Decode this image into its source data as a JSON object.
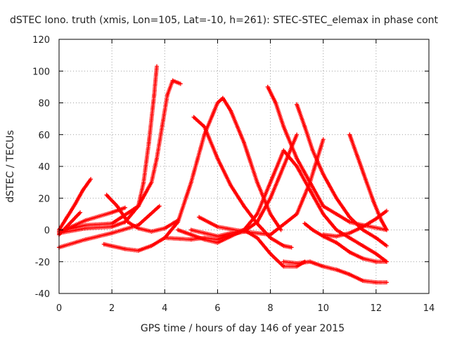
{
  "chart_data": {
    "type": "scatter",
    "title": "dSTEC Iono. truth (xmis, Lon=105, Lat=-10, h=261): STEC-STEC_elemax in phase cont",
    "xlabel": "GPS time / hours of day 146 of year 2015",
    "ylabel": "dSTEC  / TECUs",
    "xlim": [
      0,
      14
    ],
    "ylim": [
      -40,
      120
    ],
    "xticks": [
      0,
      2,
      4,
      6,
      8,
      10,
      12,
      14
    ],
    "yticks": [
      -40,
      -20,
      0,
      20,
      40,
      60,
      80,
      100,
      120
    ],
    "grid": true,
    "marker": "plus",
    "color": "#ff0000",
    "series": [
      {
        "x": [
          0.0,
          0.3,
          0.6,
          0.9,
          1.2
        ],
        "y": [
          0,
          8,
          16,
          25,
          32
        ]
      },
      {
        "x": [
          0.0,
          0.4,
          0.8
        ],
        "y": [
          -3,
          4,
          11
        ]
      },
      {
        "x": [
          0.0,
          1.0,
          2.0,
          2.5,
          3.0,
          3.2,
          3.4,
          3.6,
          3.7
        ],
        "y": [
          -2,
          1,
          2,
          5,
          15,
          30,
          55,
          85,
          103
        ]
      },
      {
        "x": [
          0.0,
          1.0,
          2.0,
          3.0,
          3.5,
          3.7,
          3.9,
          4.1,
          4.3,
          4.6
        ],
        "y": [
          -1,
          3,
          4,
          15,
          30,
          45,
          65,
          85,
          94,
          92
        ]
      },
      {
        "x": [
          0.0,
          1.0,
          2.0,
          3.0,
          3.8
        ],
        "y": [
          -11,
          -6,
          -2,
          3,
          15
        ]
      },
      {
        "x": [
          1.8,
          2.2,
          2.6,
          3.0,
          3.5,
          4.0,
          4.5
        ],
        "y": [
          22,
          15,
          5,
          1,
          -1,
          1,
          6
        ]
      },
      {
        "x": [
          0.2,
          1.0,
          2.0,
          2.5
        ],
        "y": [
          0,
          6,
          11,
          14
        ]
      },
      {
        "x": [
          1.7,
          2.5,
          3.0,
          3.5,
          4.0,
          4.5,
          5.0,
          5.5,
          6.0,
          6.2,
          6.5,
          7.0,
          7.5,
          8.0,
          8.4
        ],
        "y": [
          -9,
          -12,
          -13,
          -10,
          -5,
          5,
          30,
          60,
          80,
          83,
          75,
          55,
          30,
          10,
          0
        ]
      },
      {
        "x": [
          5.1,
          5.5,
          6.0,
          6.5,
          7.0,
          7.5,
          8.0,
          8.5,
          8.8
        ],
        "y": [
          71,
          65,
          45,
          28,
          15,
          4,
          -5,
          -10,
          -11
        ]
      },
      {
        "x": [
          4.0,
          5.0,
          5.5,
          6.0,
          6.5,
          7.0,
          7.5,
          8.0,
          8.5,
          9.0
        ],
        "y": [
          -5,
          -6,
          -5,
          -6,
          -3,
          -1,
          5,
          20,
          40,
          60
        ]
      },
      {
        "x": [
          5.3,
          6.0,
          7.0,
          8.0,
          9.0,
          9.5,
          10.0
        ],
        "y": [
          8,
          2,
          -1,
          -3,
          10,
          30,
          57
        ]
      },
      {
        "x": [
          4.5,
          5.0,
          5.5,
          6.0,
          6.5,
          7.0,
          7.5,
          8.0,
          8.5,
          9.0,
          9.3
        ],
        "y": [
          0,
          -3,
          -6,
          -8,
          -4,
          0,
          -5,
          -15,
          -23,
          -23,
          -20
        ]
      },
      {
        "x": [
          7.9,
          8.2,
          8.5,
          9.0,
          9.5,
          10.0,
          10.5,
          11.0,
          11.5,
          12.4
        ],
        "y": [
          90,
          80,
          65,
          45,
          30,
          15,
          10,
          5,
          3,
          0
        ]
      },
      {
        "x": [
          9.0,
          9.3,
          9.6,
          10.0,
          10.5,
          11.0,
          11.5,
          12.0,
          12.4
        ],
        "y": [
          79,
          65,
          50,
          35,
          20,
          8,
          0,
          -5,
          -10
        ]
      },
      {
        "x": [
          5.0,
          6.0,
          7.0,
          7.5,
          8.0,
          8.5,
          9.0,
          9.5,
          10.0,
          10.5,
          11.0,
          11.5,
          12.0,
          12.4
        ],
        "y": [
          0,
          -4,
          0,
          10,
          30,
          50,
          40,
          25,
          10,
          0,
          -5,
          -10,
          -15,
          -20
        ]
      },
      {
        "x": [
          9.3,
          9.6,
          10.0,
          10.5,
          11.0,
          11.5,
          12.0,
          12.4
        ],
        "y": [
          4,
          0,
          -4,
          -8,
          -14,
          -18,
          -20,
          -20
        ]
      },
      {
        "x": [
          11.0,
          11.3,
          11.6,
          11.9,
          12.2,
          12.4
        ],
        "y": [
          60,
          46,
          32,
          18,
          6,
          0
        ]
      },
      {
        "x": [
          8.5,
          9.0,
          9.5,
          10.0,
          10.5,
          11.0,
          11.5,
          12.0,
          12.4
        ],
        "y": [
          -20,
          -21,
          -20,
          -23,
          -25,
          -28,
          -32,
          -33,
          -33
        ]
      },
      {
        "x": [
          10.0,
          10.5,
          11.0,
          11.5,
          12.0,
          12.4
        ],
        "y": [
          -3,
          -4,
          -2,
          2,
          7,
          12
        ]
      }
    ]
  }
}
